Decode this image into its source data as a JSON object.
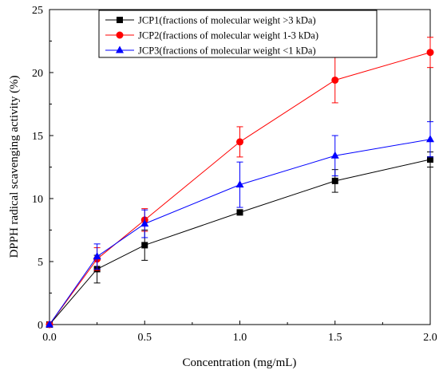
{
  "chart_data": {
    "type": "line",
    "xlabel": "Concentration (mg/mL)",
    "ylabel": "DPPH radical scavenging activity (%)",
    "xlim": [
      0.0,
      2.0
    ],
    "ylim": [
      0,
      25
    ],
    "xticks": [
      "0.0",
      "0.5",
      "1.0",
      "1.5",
      "2.0"
    ],
    "yticks": [
      "0",
      "5",
      "10",
      "15",
      "20",
      "25"
    ],
    "grid": false,
    "legend_position": "top-right",
    "x": [
      0,
      0.25,
      0.5,
      1.0,
      1.5,
      2.0
    ],
    "series": [
      {
        "name": "JCP1(fractions of molecular weight >3 kDa)",
        "color": "#000000",
        "marker": "square",
        "values": [
          0,
          4.4,
          6.3,
          8.9,
          11.4,
          13.1
        ],
        "errors": [
          0,
          1.1,
          1.2,
          0,
          0.9,
          0.6
        ]
      },
      {
        "name": "JCP2(fractions of molecular weight 1-3 kDa)",
        "color": "#ff0000",
        "marker": "circle",
        "values": [
          0,
          5.2,
          8.3,
          14.5,
          19.4,
          21.6
        ],
        "errors": [
          0,
          0.9,
          0.9,
          1.2,
          1.8,
          1.2
        ]
      },
      {
        "name": "JCP3(fractions of molecular weight <1 kDa)",
        "color": "#0000ff",
        "marker": "triangle",
        "values": [
          0,
          5.4,
          8.0,
          11.1,
          13.4,
          14.7
        ],
        "errors": [
          0,
          1.0,
          1.1,
          1.8,
          1.6,
          1.4
        ]
      }
    ]
  }
}
